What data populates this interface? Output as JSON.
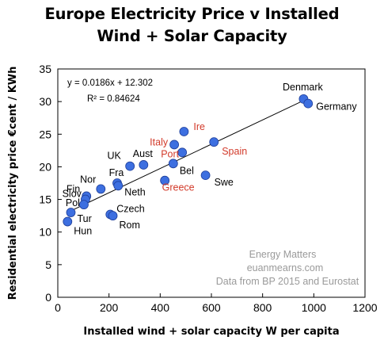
{
  "chart_data": {
    "type": "scatter",
    "title_line1": "Europe Electricity Price v Installed",
    "title_line2": "Wind + Solar Capacity",
    "xlabel": "Installed wind + solar capacity W per capita",
    "ylabel": "Residential electricity price €cent / KWh",
    "xlim": [
      0,
      1200
    ],
    "ylim": [
      0,
      35
    ],
    "xticks": [
      0,
      200,
      400,
      600,
      800,
      1000,
      1200
    ],
    "yticks": [
      0,
      5,
      10,
      15,
      20,
      25,
      30,
      35
    ],
    "grid": false,
    "legend": "none",
    "point_color": "#3d6fe0",
    "highlight_color": "#d23a2a",
    "points": [
      {
        "label": "Denmark",
        "x": 960,
        "y": 30.4,
        "highlight": false
      },
      {
        "label": "Germany",
        "x": 978,
        "y": 29.7,
        "highlight": false
      },
      {
        "label": "Ire",
        "x": 493,
        "y": 25.4,
        "highlight": true
      },
      {
        "label": "Italy",
        "x": 455,
        "y": 23.4,
        "highlight": true
      },
      {
        "label": "Spain",
        "x": 610,
        "y": 23.8,
        "highlight": true
      },
      {
        "label": "Port",
        "x": 486,
        "y": 22.2,
        "highlight": true
      },
      {
        "label": "Aust",
        "x": 335,
        "y": 20.3,
        "highlight": false
      },
      {
        "label": "UK",
        "x": 282,
        "y": 20.1,
        "highlight": false
      },
      {
        "label": "Bel",
        "x": 451,
        "y": 20.5,
        "highlight": false
      },
      {
        "label": "Swe",
        "x": 577,
        "y": 18.7,
        "highlight": false
      },
      {
        "label": "Greece",
        "x": 418,
        "y": 17.9,
        "highlight": true
      },
      {
        "label": "Fra",
        "x": 232,
        "y": 17.5,
        "highlight": false
      },
      {
        "label": "Neth",
        "x": 236,
        "y": 17.1,
        "highlight": false
      },
      {
        "label": "Nor",
        "x": 168,
        "y": 16.6,
        "highlight": false
      },
      {
        "label": "Fin",
        "x": 112,
        "y": 15.5,
        "highlight": false
      },
      {
        "label": "Slov",
        "x": 108,
        "y": 15.0,
        "highlight": false
      },
      {
        "label": "Pol",
        "x": 102,
        "y": 14.2,
        "highlight": false
      },
      {
        "label": "Tur",
        "x": 51,
        "y": 13.0,
        "highlight": false
      },
      {
        "label": "Czech",
        "x": 205,
        "y": 12.7,
        "highlight": false
      },
      {
        "label": "Rom",
        "x": 215,
        "y": 12.5,
        "highlight": false
      },
      {
        "label": "Hun",
        "x": 38,
        "y": 11.6,
        "highlight": false
      }
    ],
    "trendline": {
      "slope": 0.0186,
      "intercept": 12.302,
      "x_range": [
        40,
        960
      ]
    },
    "equation_text": "y = 0.0186x + 12.302",
    "r2_text": "R² = 0.84624",
    "notes": [
      "Energy Matters",
      "euanmearns.com",
      "Data from BP 2015 and Eurostat"
    ]
  }
}
